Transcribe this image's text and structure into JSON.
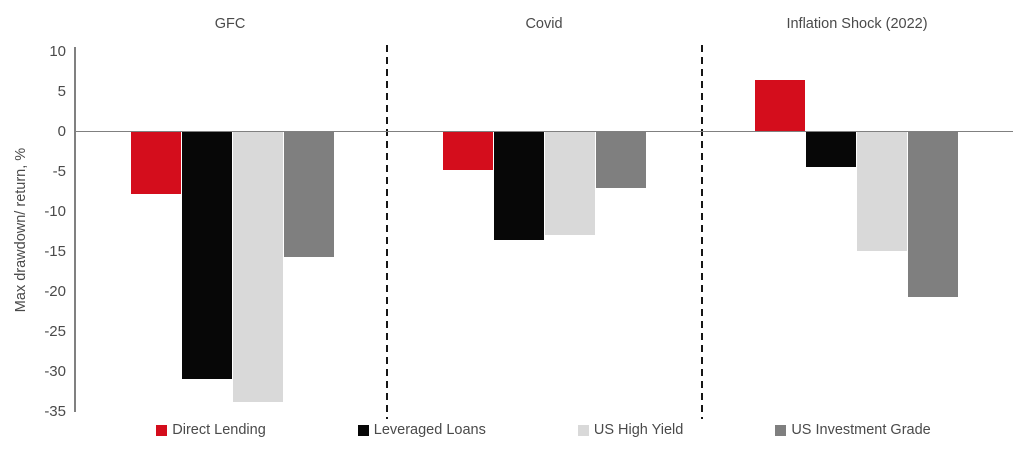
{
  "chart_data": {
    "type": "bar",
    "title": "",
    "ylabel": "Max drawdown/ return, %",
    "xlabel": "",
    "ylim": [
      -35,
      10
    ],
    "y_ticks": [
      10,
      5,
      0,
      -5,
      -10,
      -15,
      -20,
      -25,
      -30,
      -35
    ],
    "grid": false,
    "legend_position": "bottom",
    "panel_separator_style": "vertical dashed line",
    "categories": [
      "GFC",
      "Covid",
      "Inflation Shock (2022)"
    ],
    "series": [
      {
        "name": "Direct Lending",
        "color": "#d40d1c",
        "values": [
          -7.8,
          -4.8,
          6.4
        ]
      },
      {
        "name": "Leveraged Loans",
        "color": "#070707",
        "values": [
          -30.9,
          -13.5,
          -4.4
        ]
      },
      {
        "name": "US High Yield",
        "color": "#d9d9d9",
        "values": [
          -33.8,
          -12.9,
          -14.9
        ]
      },
      {
        "name": "US Investment Grade",
        "color": "#7f7f7f",
        "values": [
          -15.7,
          -7.1,
          -20.7
        ]
      }
    ]
  },
  "colors": {
    "axis": "#808080",
    "text": "#4a4a4a",
    "separator": "#161616",
    "background": "#ffffff"
  }
}
